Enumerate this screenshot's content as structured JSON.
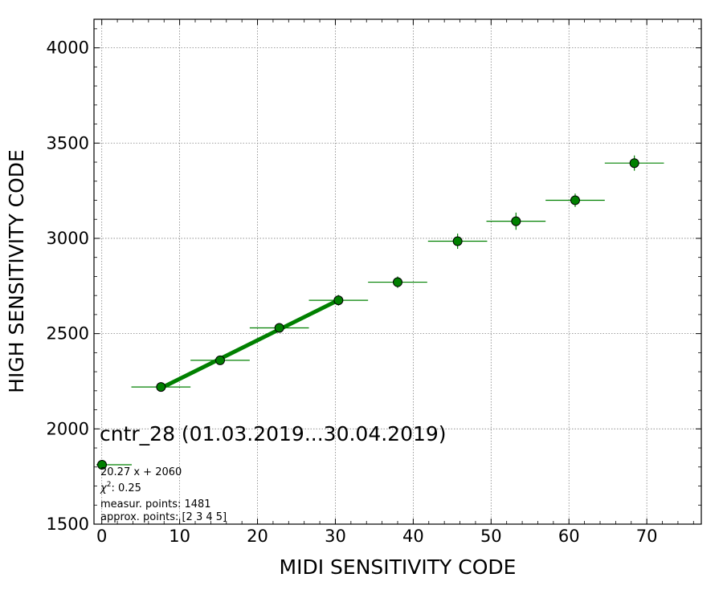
{
  "chart_data": {
    "type": "scatter",
    "title": "cntr_28 (01.03.2019...30.04.2019)",
    "xlabel": "MIDI SENSITIVITY CODE",
    "ylabel": "HIGH SENSITIVITY CODE",
    "xlim": [
      -1,
      77
    ],
    "ylim": [
      1500,
      4150
    ],
    "xticks": [
      0,
      10,
      20,
      30,
      40,
      50,
      60,
      70
    ],
    "yticks": [
      1500,
      2000,
      2500,
      3000,
      3500,
      4000
    ],
    "grid": true,
    "colors": {
      "points": "#008000",
      "fit": "#008000",
      "grid": "#808080"
    },
    "series": [
      {
        "x": [
          7.6,
          15.2,
          22.8,
          30.4,
          38.0,
          45.7,
          53.2,
          60.8,
          68.4
        ],
        "y": [
          2220,
          2360,
          2530,
          2675,
          2770,
          2985,
          3090,
          3200,
          3395
        ],
        "x_err": [
          3.8,
          3.8,
          3.8,
          3.8,
          3.8,
          3.8,
          3.8,
          3.8,
          3.8
        ],
        "y_err": [
          15,
          18,
          22,
          28,
          30,
          40,
          45,
          35,
          40
        ]
      }
    ],
    "fit_line": {
      "x": [
        7.6,
        30.4
      ],
      "y": [
        2214,
        2676
      ]
    },
    "legend": {
      "formula": "20.27 x + 2060",
      "chi2": ": 0.25",
      "measur_points": "measur. points: 1481",
      "approx_points": "approx. points: [2 3 4 5]"
    }
  }
}
